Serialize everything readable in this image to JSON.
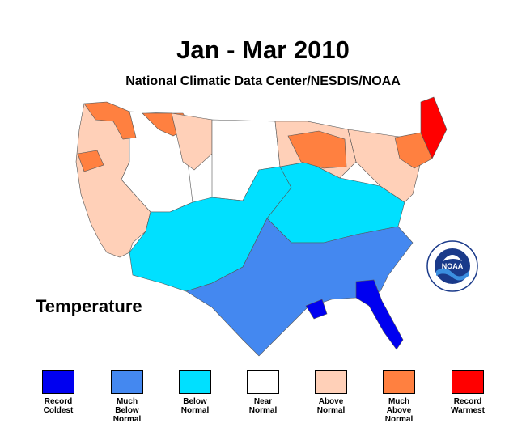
{
  "header": {
    "title": "Jan - Mar 2010",
    "subtitle": "National Climatic Data Center/NESDIS/NOAA"
  },
  "map": {
    "parameter_label": "Temperature",
    "logo_text": "NOAA"
  },
  "legend": [
    {
      "label": "Record\nColdest",
      "color": "#0000f0"
    },
    {
      "label": "Much\nBelow\nNormal",
      "color": "#4488f0"
    },
    {
      "label": "Below\nNormal",
      "color": "#00e0ff"
    },
    {
      "label": "Near\nNormal",
      "color": "#ffffff"
    },
    {
      "label": "Above\nNormal",
      "color": "#ffd0b8"
    },
    {
      "label": "Much\nAbove\nNormal",
      "color": "#ff8040"
    },
    {
      "label": "Record\nWarmest",
      "color": "#ff0000"
    }
  ]
}
